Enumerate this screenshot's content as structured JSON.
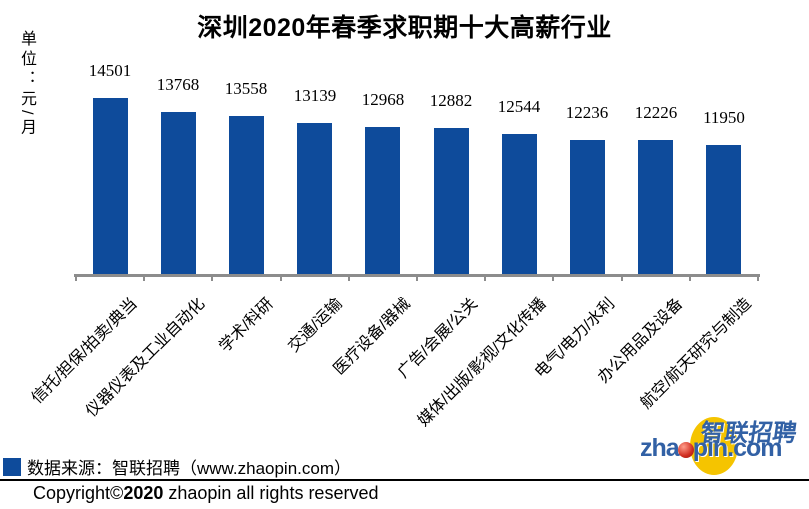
{
  "title": "深圳2020年春季求职期十大高薪行业",
  "unit_label": "单位：元/月",
  "chart_data": {
    "type": "bar",
    "title": "深圳2020年春季求职期十大高薪行业",
    "categories": [
      "信托/担保/拍卖/典当",
      "仪器仪表及工业自动化",
      "学术/科研",
      "交通/运输",
      "医疗设备/器械",
      "广告/会展/公关",
      "媒体/出版/影视/文化传播",
      "电气/电力/水利",
      "办公用品及设备",
      "航空/航天研究与制造"
    ],
    "values": [
      14501,
      13768,
      13558,
      13139,
      12968,
      12882,
      12544,
      12236,
      12226,
      11950
    ],
    "xlabel": "",
    "ylabel": "单位：元/月",
    "ylim": [
      5000,
      15000
    ],
    "grid": false,
    "legend_position": "none",
    "data_labels": true,
    "bar_color": "#0E4B9B",
    "axis_color": "#8C8C8C",
    "label_color": "#000000"
  },
  "source_note": {
    "marker_color": "#0E4B9B",
    "text": "数据来源：智联招聘（www.zhaopin.com）"
  },
  "footer": {
    "copyright_prefix": "Copyright©",
    "copyright_year": "2020",
    "copyright_suffix": " zhaopin all rights reserved"
  },
  "logo": {
    "cn_text": "智联招聘",
    "en_prefix": "zha",
    "en_suffix": "pin.com",
    "blue": "#3261A5",
    "yellow": "#F5C400",
    "red": "#C8281E"
  }
}
